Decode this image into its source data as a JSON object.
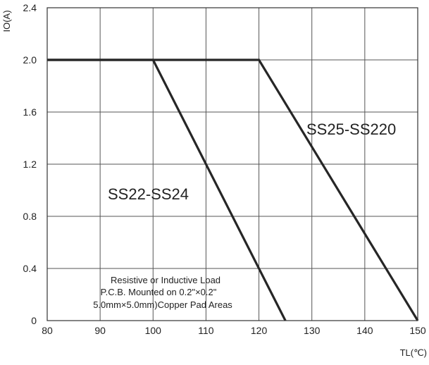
{
  "chart_data": {
    "type": "line",
    "title": "",
    "xlabel": "TL(℃)",
    "ylabel": "IO(A)",
    "xlim": [
      80,
      150
    ],
    "ylim": [
      0,
      2.4
    ],
    "x_ticks": [
      "80",
      "90",
      "100",
      "110",
      "120",
      "130",
      "140",
      "150"
    ],
    "y_ticks": [
      "0",
      "0.4",
      "0.8",
      "1.2",
      "1.6",
      "2.0",
      "2.4"
    ],
    "grid": true,
    "series": [
      {
        "name": "SS22-SS24",
        "x": [
          80,
          100,
          125
        ],
        "y": [
          2.0,
          2.0,
          0
        ]
      },
      {
        "name": "SS25-SS220",
        "x": [
          80,
          120,
          150
        ],
        "y": [
          2.0,
          2.0,
          0
        ]
      }
    ],
    "annotations": [
      "Resistive or Inductive Load",
      "P.C.B. Mounted on 0.2\"×0.2\"",
      "5.0mm×5.0mm)Copper Pad Areas"
    ],
    "colors": {
      "line": "#262626",
      "grid": "#555555",
      "text": "#222222"
    }
  }
}
